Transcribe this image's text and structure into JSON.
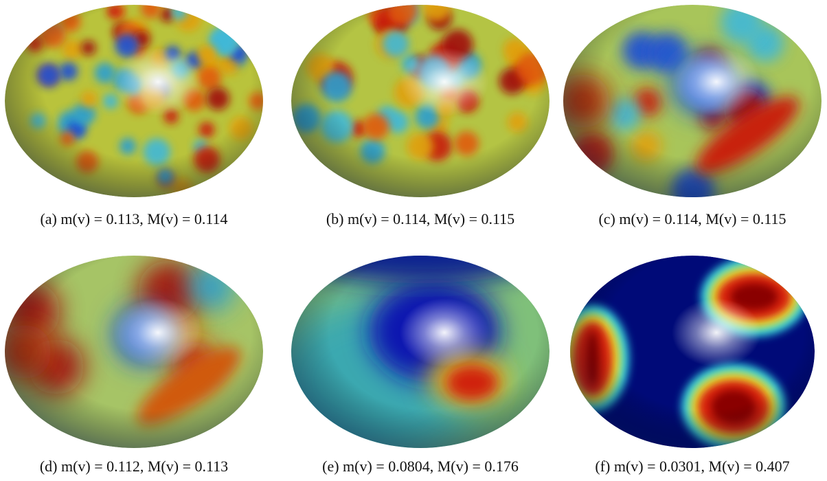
{
  "panels": [
    {
      "caption": "(a) m(v) = 0.113, M(v) = 0.114"
    },
    {
      "caption": "(b) m(v) = 0.114, M(v) = 0.115"
    },
    {
      "caption": "(c) m(v) = 0.114, M(v) = 0.115"
    },
    {
      "caption": "(d) m(v) = 0.112, M(v) = 0.113"
    },
    {
      "caption": "(e) m(v) = 0.0804, M(v) = 0.176"
    },
    {
      "caption": "(f) m(v) = 0.0301, M(v) = 0.407"
    }
  ]
}
